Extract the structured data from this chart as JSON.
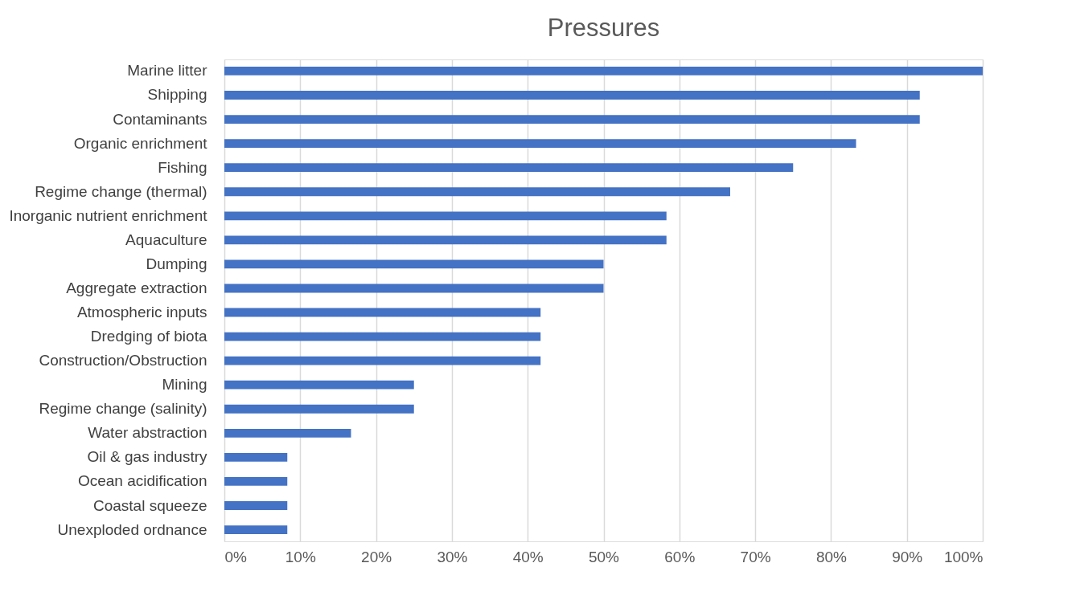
{
  "chart_data": {
    "type": "bar",
    "orientation": "horizontal",
    "title": "Pressures",
    "categories": [
      "Marine litter",
      "Shipping",
      "Contaminants",
      "Organic enrichment",
      "Fishing",
      "Regime change (thermal)",
      "Inorganic nutrient enrichment",
      "Aquaculture",
      "Dumping",
      "Aggregate extraction",
      "Atmospheric inputs",
      "Dredging of biota",
      "Construction/Obstruction",
      "Mining",
      "Regime change (salinity)",
      "Water abstraction",
      "Oil & gas industry",
      "Ocean acidification",
      "Coastal squeeze",
      "Unexploded ordnance"
    ],
    "values": [
      100,
      91.7,
      91.7,
      83.3,
      75,
      66.7,
      58.3,
      58.3,
      50,
      50,
      41.7,
      41.7,
      41.7,
      25,
      25,
      16.7,
      8.3,
      8.3,
      8.3,
      8.3
    ],
    "color": "#4472c4",
    "xlim": [
      0,
      100
    ],
    "xticks": [
      {
        "value": 0,
        "label": "0%"
      },
      {
        "value": 10,
        "label": "10%"
      },
      {
        "value": 20,
        "label": "20%"
      },
      {
        "value": 30,
        "label": "30%"
      },
      {
        "value": 40,
        "label": "40%"
      },
      {
        "value": 50,
        "label": "50%"
      },
      {
        "value": 60,
        "label": "60%"
      },
      {
        "value": 70,
        "label": "70%"
      },
      {
        "value": 80,
        "label": "80%"
      },
      {
        "value": 90,
        "label": "90%"
      },
      {
        "value": 100,
        "label": "100%"
      }
    ],
    "grid": "x"
  }
}
